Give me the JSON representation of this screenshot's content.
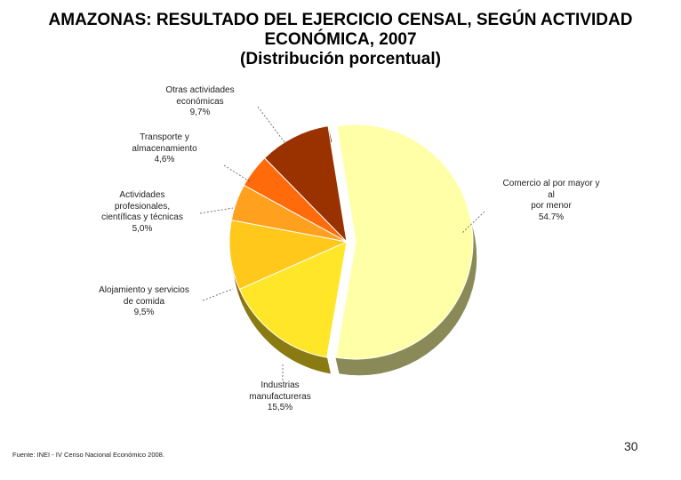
{
  "title": {
    "line1": "AMAZONAS: RESULTADO DEL EJERCICIO CENSAL, SEGÚN ACTIVIDAD",
    "line2": "ECONÓMICA, 2007",
    "line3": "(Distribución porcentual)"
  },
  "chart_data": {
    "type": "pie",
    "title": "AMAZONAS: RESULTADO DEL EJERCICIO CENSAL, SEGÚN ACTIVIDAD ECONÓMICA, 2007 (Distribución porcentual)",
    "categories": [
      "Comercio al por mayor y al por menor",
      "Industrias manufactureras",
      "Alojamiento y servicios de comida",
      "Actividades profesionales, científicas y técnicas",
      "Transporte y almacenamiento",
      "Otras actividades económicas"
    ],
    "values": [
      54.7,
      15.5,
      9.5,
      5.0,
      4.6,
      9.7
    ],
    "value_labels": [
      "54.7%",
      "15,5%",
      "9,5%",
      "5,0%",
      "4,6%",
      "9,7%"
    ],
    "colors": [
      "#FFFFA8",
      "#FFE629",
      "#FFC81A",
      "#FFA01E",
      "#FF6A0A",
      "#9A3200"
    ],
    "side_colors": [
      "#8A8A58",
      "#8A7A12",
      "#8A6A0A",
      "#8A540A",
      "#8A3605",
      "#4E1800"
    ],
    "exploded": [
      true,
      false,
      false,
      false,
      false,
      false
    ],
    "labels": [
      {
        "name_lines": [
          "Comercio al por mayor y",
          "al",
          "por menor"
        ],
        "pct": "54.7%"
      },
      {
        "name_lines": [
          "Industrias",
          "manufactureras"
        ],
        "pct": "15,5%"
      },
      {
        "name_lines": [
          "Alojamiento y servicios",
          "de comida"
        ],
        "pct": "9,5%"
      },
      {
        "name_lines": [
          "Actividades",
          "profesionales,",
          "científicas y técnicas"
        ],
        "pct": "5,0%"
      },
      {
        "name_lines": [
          "Transporte y",
          "almacenamiento"
        ],
        "pct": "4,6%"
      },
      {
        "name_lines": [
          "Otras actividades",
          "económicas"
        ],
        "pct": "9,7%"
      }
    ]
  },
  "footer": {
    "source": "Fuente: INEI - IV Censo Nacional Económico 2008.",
    "page_number": "30"
  }
}
